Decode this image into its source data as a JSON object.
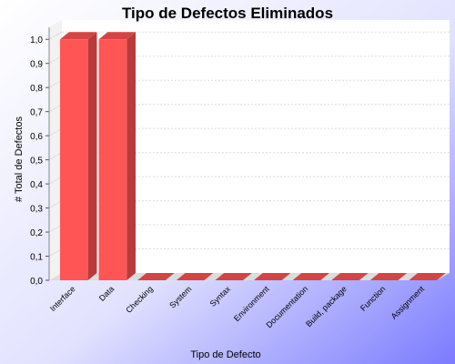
{
  "chart_data": {
    "type": "bar",
    "title": "Tipo de Defectos Eliminados",
    "xlabel": "Tipo de Defecto",
    "ylabel": "# Total de Defectos",
    "categories": [
      "Interface",
      "Data",
      "Checking",
      "System",
      "Syntax",
      "Environment",
      "Documentation",
      "Build, package",
      "Function",
      "Assignment"
    ],
    "values": [
      1.0,
      1.0,
      0,
      0,
      0,
      0,
      0,
      0,
      0,
      0
    ],
    "ylim": [
      0,
      1.05
    ],
    "yticks": [
      "0,0",
      "0,1",
      "0,2",
      "0,3",
      "0,4",
      "0,5",
      "0,6",
      "0,7",
      "0,8",
      "0,9",
      "1,0"
    ],
    "ytick_values": [
      0,
      0.1,
      0.2,
      0.3,
      0.4,
      0.5,
      0.6,
      0.7,
      0.8,
      0.9,
      1.0
    ],
    "grid": true,
    "legend": "none",
    "colors": {
      "bar_front": "#ff5555",
      "bar_side": "#b83a3a",
      "bar_top": "#d44444",
      "background_light": "#ffffff",
      "background_dark": "#7b7bff",
      "plot_bg": "#ffffff",
      "grid": "#dddddd"
    }
  }
}
